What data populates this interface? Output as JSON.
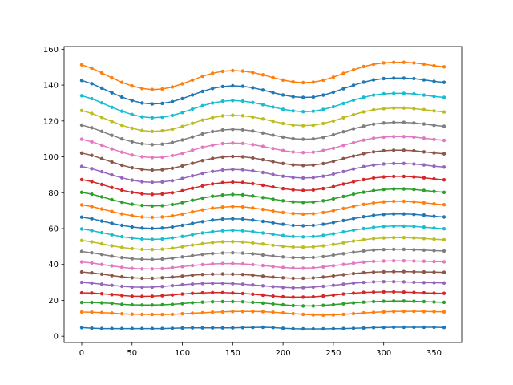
{
  "chart_data": {
    "type": "line",
    "title": "",
    "xlabel": "",
    "ylabel": "",
    "xlim": [
      -17.5,
      377.5
    ],
    "ylim": [
      -3.5,
      161.5
    ],
    "x_ticks": [
      0,
      50,
      100,
      150,
      200,
      250,
      300,
      350
    ],
    "y_ticks": [
      0,
      20,
      40,
      60,
      80,
      100,
      120,
      140,
      160
    ],
    "grid": false,
    "legend": "none",
    "marker": "circle",
    "x": [
      0,
      10,
      20,
      30,
      40,
      50,
      60,
      70,
      80,
      90,
      100,
      110,
      120,
      130,
      140,
      150,
      160,
      170,
      180,
      190,
      200,
      210,
      220,
      230,
      240,
      250,
      260,
      270,
      280,
      290,
      300,
      310,
      320,
      330,
      340,
      350,
      360
    ],
    "series": [
      {
        "color": "#1f77b4",
        "values": [
          4.8,
          4.5,
          4.3,
          4.3,
          4.3,
          4.3,
          4.3,
          4.3,
          4.3,
          4.4,
          4.6,
          4.7,
          4.7,
          4.7,
          4.7,
          4.7,
          4.8,
          4.9,
          5.0,
          4.8,
          4.4,
          4.2,
          4.1,
          4.1,
          4.1,
          4.2,
          4.3,
          4.4,
          4.6,
          4.8,
          4.9,
          5.0,
          5.0,
          5.0,
          5.0,
          5.0,
          4.9
        ]
      },
      {
        "color": "#ff7f0e",
        "values": [
          13.5,
          13.4,
          13.2,
          12.9,
          12.5,
          12.3,
          12.2,
          12.1,
          12.1,
          12.2,
          12.5,
          12.8,
          13.1,
          13.4,
          13.6,
          13.8,
          13.8,
          13.8,
          13.7,
          13.4,
          13.0,
          12.6,
          12.2,
          11.9,
          11.8,
          11.9,
          12.2,
          12.6,
          13.0,
          13.3,
          13.6,
          13.8,
          13.9,
          13.9,
          13.8,
          13.7,
          13.6
        ]
      },
      {
        "color": "#2ca02c",
        "values": [
          18.8,
          18.8,
          18.6,
          18.3,
          17.8,
          17.5,
          17.4,
          17.4,
          17.5,
          17.8,
          18.2,
          18.7,
          19.0,
          19.2,
          19.3,
          19.3,
          19.2,
          18.9,
          18.5,
          18.0,
          17.5,
          17.1,
          16.9,
          16.9,
          17.2,
          17.6,
          18.1,
          18.6,
          19.0,
          19.3,
          19.5,
          19.6,
          19.6,
          19.5,
          19.3,
          19.1,
          18.9
        ]
      },
      {
        "color": "#d62728",
        "values": [
          24.2,
          24.1,
          23.7,
          23.2,
          22.7,
          22.3,
          22.2,
          22.3,
          22.6,
          23.0,
          23.5,
          23.9,
          24.2,
          24.3,
          24.3,
          24.1,
          23.8,
          23.4,
          22.9,
          22.4,
          22.0,
          21.8,
          21.8,
          22.0,
          22.4,
          22.9,
          23.5,
          24.0,
          24.4,
          24.6,
          24.7,
          24.7,
          24.6,
          24.4,
          24.2,
          24.0,
          23.9
        ]
      },
      {
        "color": "#9467bd",
        "values": [
          30.0,
          29.6,
          29.0,
          28.4,
          27.8,
          27.4,
          27.3,
          27.4,
          27.7,
          28.2,
          28.7,
          29.1,
          29.4,
          29.5,
          29.5,
          29.3,
          29.0,
          28.6,
          28.1,
          27.6,
          27.2,
          27.0,
          27.1,
          27.4,
          27.8,
          28.4,
          29.0,
          29.6,
          30.0,
          30.3,
          30.4,
          30.4,
          30.3,
          30.1,
          29.9,
          29.8,
          29.7
        ]
      },
      {
        "color": "#8c564b",
        "values": [
          35.8,
          35.3,
          34.6,
          33.8,
          33.1,
          32.6,
          32.3,
          32.3,
          32.6,
          33.0,
          33.5,
          34.0,
          34.4,
          34.6,
          34.7,
          34.6,
          34.4,
          34.0,
          33.5,
          33.0,
          32.6,
          32.3,
          32.3,
          32.5,
          33.0,
          33.6,
          34.3,
          34.9,
          35.4,
          35.7,
          35.9,
          36.0,
          36.0,
          35.9,
          35.8,
          35.7,
          35.6
        ]
      },
      {
        "color": "#e377c2",
        "values": [
          41.4,
          40.8,
          40.0,
          39.2,
          38.4,
          37.8,
          37.5,
          37.5,
          37.7,
          38.2,
          38.8,
          39.4,
          39.9,
          40.3,
          40.5,
          40.5,
          40.3,
          39.9,
          39.4,
          38.8,
          38.3,
          38.0,
          37.9,
          38.1,
          38.6,
          39.3,
          40.0,
          40.7,
          41.3,
          41.7,
          41.9,
          42.0,
          42.0,
          41.9,
          41.8,
          41.6,
          41.5
        ]
      },
      {
        "color": "#7f7f7f",
        "values": [
          47.2,
          46.5,
          45.6,
          44.6,
          43.8,
          43.2,
          42.9,
          42.8,
          43.0,
          43.5,
          44.2,
          44.9,
          45.6,
          46.1,
          46.4,
          46.5,
          46.3,
          45.9,
          45.3,
          44.7,
          44.2,
          43.8,
          43.7,
          43.9,
          44.4,
          45.2,
          46.0,
          46.8,
          47.5,
          48.0,
          48.3,
          48.4,
          48.4,
          48.2,
          48.0,
          47.7,
          47.5
        ]
      },
      {
        "color": "#bcbd22",
        "values": [
          53.4,
          52.6,
          51.5,
          50.4,
          49.5,
          48.8,
          48.4,
          48.3,
          48.5,
          49.1,
          49.9,
          50.8,
          51.6,
          52.2,
          52.6,
          52.7,
          52.5,
          52.0,
          51.4,
          50.7,
          50.1,
          49.7,
          49.6,
          49.8,
          50.4,
          51.2,
          52.1,
          53.0,
          53.8,
          54.4,
          54.8,
          55.0,
          55.0,
          54.8,
          54.5,
          54.1,
          53.8
        ]
      },
      {
        "color": "#17becf",
        "values": [
          59.8,
          58.9,
          57.7,
          56.5,
          55.5,
          54.7,
          54.2,
          54.0,
          54.2,
          54.8,
          55.6,
          56.6,
          57.6,
          58.3,
          58.8,
          59.0,
          58.8,
          58.3,
          57.6,
          56.8,
          56.1,
          55.6,
          55.4,
          55.6,
          56.2,
          57.1,
          58.1,
          59.1,
          60.0,
          60.7,
          61.2,
          61.4,
          61.4,
          61.2,
          60.8,
          60.3,
          59.9
        ]
      },
      {
        "color": "#1f77b4",
        "values": [
          66.4,
          65.5,
          64.2,
          62.9,
          61.8,
          60.9,
          60.3,
          60.1,
          60.3,
          60.9,
          61.8,
          62.9,
          63.9,
          64.8,
          65.3,
          65.5,
          65.3,
          64.8,
          64.0,
          63.2,
          62.4,
          61.8,
          61.6,
          61.8,
          62.4,
          63.4,
          64.5,
          65.6,
          66.6,
          67.4,
          67.9,
          68.2,
          68.2,
          67.9,
          67.5,
          66.9,
          66.5
        ]
      },
      {
        "color": "#ff7f0e",
        "values": [
          73.2,
          72.3,
          70.9,
          69.5,
          68.2,
          67.2,
          66.5,
          66.3,
          66.5,
          67.1,
          68.1,
          69.3,
          70.4,
          71.4,
          72.0,
          72.3,
          72.1,
          71.5,
          70.7,
          69.8,
          69.0,
          68.4,
          68.1,
          68.3,
          69.0,
          70.0,
          71.2,
          72.4,
          73.5,
          74.3,
          74.9,
          75.2,
          75.2,
          74.9,
          74.4,
          73.8,
          73.3
        ]
      },
      {
        "color": "#2ca02c",
        "values": [
          80.2,
          79.2,
          77.7,
          76.1,
          74.7,
          73.6,
          72.9,
          72.6,
          72.8,
          73.4,
          74.5,
          75.8,
          77.0,
          78.0,
          78.7,
          79.0,
          78.8,
          78.2,
          77.3,
          76.4,
          75.5,
          74.9,
          74.6,
          74.8,
          75.5,
          76.6,
          77.9,
          79.2,
          80.3,
          81.2,
          81.8,
          82.1,
          82.1,
          81.8,
          81.3,
          80.7,
          80.2
        ]
      },
      {
        "color": "#d62728",
        "values": [
          87.3,
          86.2,
          84.6,
          82.9,
          81.4,
          80.2,
          79.4,
          79.1,
          79.3,
          80.0,
          81.1,
          82.5,
          83.8,
          84.9,
          85.6,
          85.9,
          85.7,
          85.1,
          84.2,
          83.2,
          82.3,
          81.6,
          81.3,
          81.5,
          82.3,
          83.4,
          84.8,
          86.1,
          87.3,
          88.2,
          88.8,
          89.1,
          89.1,
          88.8,
          88.3,
          87.7,
          87.2
        ]
      },
      {
        "color": "#9467bd",
        "values": [
          94.6,
          93.4,
          91.7,
          89.9,
          88.3,
          87.0,
          86.1,
          85.8,
          86.0,
          86.7,
          87.9,
          89.4,
          90.8,
          91.9,
          92.7,
          93.0,
          92.8,
          92.2,
          91.3,
          90.2,
          89.2,
          88.5,
          88.2,
          88.4,
          89.2,
          90.4,
          91.8,
          93.2,
          94.5,
          95.4,
          96.0,
          96.3,
          96.3,
          96.0,
          95.5,
          94.8,
          94.3
        ]
      },
      {
        "color": "#8c564b",
        "values": [
          102.1,
          100.8,
          99.0,
          97.1,
          95.3,
          93.9,
          93.0,
          92.6,
          92.8,
          93.6,
          94.9,
          96.4,
          97.9,
          99.1,
          99.9,
          100.2,
          100.0,
          99.4,
          98.4,
          97.3,
          96.3,
          95.5,
          95.2,
          95.4,
          96.2,
          97.5,
          99.0,
          100.4,
          101.8,
          102.8,
          103.4,
          103.7,
          103.7,
          103.4,
          102.8,
          102.2,
          101.7
        ]
      },
      {
        "color": "#e377c2",
        "values": [
          109.8,
          108.4,
          106.5,
          104.4,
          102.6,
          101.0,
          100.0,
          99.6,
          99.8,
          100.7,
          102.0,
          103.7,
          105.3,
          106.5,
          107.4,
          107.7,
          107.5,
          106.8,
          105.8,
          104.6,
          103.5,
          102.7,
          102.4,
          102.6,
          103.5,
          104.8,
          106.4,
          107.9,
          109.3,
          110.4,
          111.0,
          111.3,
          111.3,
          111.0,
          110.4,
          109.7,
          109.2
        ]
      },
      {
        "color": "#7f7f7f",
        "values": [
          117.7,
          116.2,
          114.2,
          112.0,
          110.0,
          108.4,
          107.3,
          106.8,
          107.1,
          108.0,
          109.4,
          111.1,
          112.8,
          114.1,
          115.0,
          115.3,
          115.1,
          114.4,
          113.3,
          112.1,
          111.0,
          110.1,
          109.8,
          110.0,
          110.9,
          112.3,
          114.0,
          115.6,
          117.1,
          118.2,
          118.9,
          119.2,
          119.2,
          118.9,
          118.3,
          117.6,
          117.0
        ]
      },
      {
        "color": "#bcbd22",
        "values": [
          125.8,
          124.2,
          122.0,
          119.7,
          117.6,
          115.9,
          114.7,
          114.2,
          114.5,
          115.4,
          116.9,
          118.7,
          120.5,
          121.9,
          122.8,
          123.2,
          122.9,
          122.2,
          121.1,
          119.8,
          118.6,
          117.7,
          117.4,
          117.6,
          118.6,
          120.0,
          121.8,
          123.5,
          125.1,
          126.2,
          126.9,
          127.2,
          127.2,
          126.9,
          126.3,
          125.6,
          125.0
        ]
      },
      {
        "color": "#17becf",
        "values": [
          134.1,
          132.4,
          130.1,
          127.6,
          125.4,
          123.6,
          122.3,
          121.8,
          122.1,
          123.1,
          124.7,
          126.6,
          128.5,
          130.0,
          131.0,
          131.4,
          131.1,
          130.3,
          129.1,
          127.8,
          126.5,
          125.6,
          125.2,
          125.4,
          126.4,
          127.9,
          129.8,
          131.6,
          133.2,
          134.4,
          135.1,
          135.4,
          135.4,
          135.1,
          134.4,
          133.7,
          133.1
        ]
      },
      {
        "color": "#1f77b4",
        "values": [
          142.6,
          140.8,
          138.3,
          135.7,
          133.3,
          131.4,
          130.0,
          129.5,
          129.8,
          130.8,
          132.5,
          134.5,
          136.5,
          138.1,
          139.2,
          139.6,
          139.3,
          138.5,
          137.2,
          135.8,
          134.5,
          133.5,
          133.1,
          133.3,
          134.4,
          136.0,
          138.0,
          139.9,
          141.6,
          142.9,
          143.6,
          143.9,
          143.9,
          143.6,
          142.9,
          142.1,
          141.5
        ]
      },
      {
        "color": "#ff7f0e",
        "values": [
          151.3,
          149.4,
          146.8,
          144.0,
          141.5,
          139.5,
          138.1,
          137.5,
          137.8,
          138.9,
          140.7,
          142.8,
          144.9,
          146.6,
          147.7,
          148.1,
          147.8,
          147.0,
          145.7,
          144.2,
          142.8,
          141.8,
          141.4,
          141.6,
          142.7,
          144.4,
          146.5,
          148.5,
          150.3,
          151.6,
          152.4,
          152.7,
          152.7,
          152.4,
          151.7,
          150.8,
          150.2
        ]
      }
    ]
  }
}
